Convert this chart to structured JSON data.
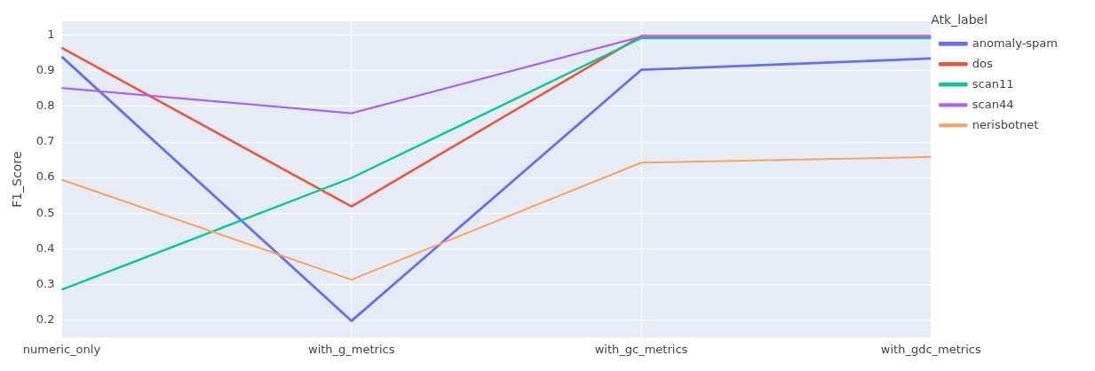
{
  "chart_data": {
    "type": "line",
    "ylabel": "F1_Score",
    "legend_title": "Atk_label",
    "categories": [
      "numeric_only",
      "with_g_metrics",
      "with_gc_metrics",
      "with_gdc_metrics"
    ],
    "series": [
      {
        "name": "anomaly-spam",
        "color": "#636efa",
        "values": [
          0.94,
          0.197,
          0.903,
          0.935
        ]
      },
      {
        "name": "dos",
        "color": "#ef553b",
        "values": [
          0.965,
          0.519,
          0.998,
          0.998
        ]
      },
      {
        "name": "scan11",
        "color": "#00cc96",
        "values": [
          0.285,
          0.599,
          0.992,
          0.992
        ]
      },
      {
        "name": "scan44",
        "color": "#ab63fa",
        "values": [
          0.852,
          0.781,
          0.996,
          0.996
        ]
      },
      {
        "name": "nerisbotnet",
        "color": "#ffa15a",
        "values": [
          0.594,
          0.313,
          0.642,
          0.658
        ]
      }
    ],
    "ylim": [
      0.15,
      1.04
    ],
    "yticks": [
      0.2,
      0.3,
      0.4,
      0.5,
      0.6,
      0.7,
      0.8,
      0.9,
      1
    ],
    "grid": true,
    "legend": "right",
    "marker": "none",
    "line_style": "solid"
  }
}
